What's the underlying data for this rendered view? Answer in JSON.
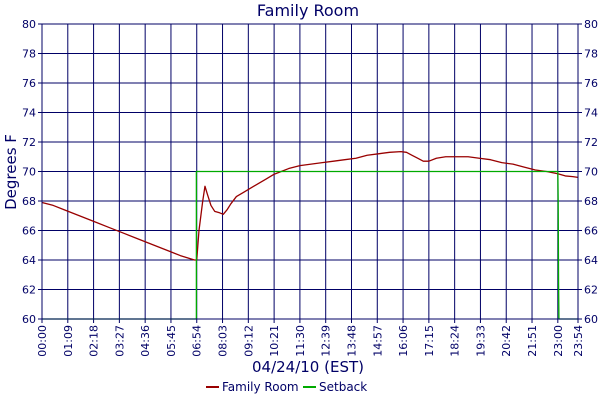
{
  "chart_data": {
    "type": "line",
    "title": "Family Room",
    "xlabel": "04/24/10 (EST)",
    "ylabel": "Degrees F",
    "xlim": [
      0,
      1434
    ],
    "ylim": [
      60,
      80
    ],
    "y_ticks": [
      60,
      62,
      64,
      66,
      68,
      70,
      72,
      74,
      76,
      78,
      80
    ],
    "x_ticks": [
      {
        "minutes": 0,
        "label": "00:00"
      },
      {
        "minutes": 69,
        "label": "01:09"
      },
      {
        "minutes": 138,
        "label": "02:18"
      },
      {
        "minutes": 207,
        "label": "03:27"
      },
      {
        "minutes": 276,
        "label": "04:36"
      },
      {
        "minutes": 345,
        "label": "05:45"
      },
      {
        "minutes": 414,
        "label": "06:54"
      },
      {
        "minutes": 483,
        "label": "08:03"
      },
      {
        "minutes": 552,
        "label": "09:12"
      },
      {
        "minutes": 621,
        "label": "10:21"
      },
      {
        "minutes": 690,
        "label": "11:30"
      },
      {
        "minutes": 759,
        "label": "12:39"
      },
      {
        "minutes": 828,
        "label": "13:48"
      },
      {
        "minutes": 897,
        "label": "14:57"
      },
      {
        "minutes": 966,
        "label": "16:06"
      },
      {
        "minutes": 1035,
        "label": "17:15"
      },
      {
        "minutes": 1104,
        "label": "18:24"
      },
      {
        "minutes": 1173,
        "label": "19:33"
      },
      {
        "minutes": 1242,
        "label": "20:42"
      },
      {
        "minutes": 1311,
        "label": "21:51"
      },
      {
        "minutes": 1380,
        "label": "23:00"
      },
      {
        "minutes": 1434,
        "label": "23:54"
      }
    ],
    "grid": true,
    "legend_position": "bottom",
    "series": [
      {
        "name": "Family Room",
        "color": "#990000",
        "points": [
          [
            0,
            67.9
          ],
          [
            30,
            67.7
          ],
          [
            60,
            67.4
          ],
          [
            100,
            67.0
          ],
          [
            140,
            66.6
          ],
          [
            180,
            66.2
          ],
          [
            220,
            65.8
          ],
          [
            260,
            65.4
          ],
          [
            300,
            65.0
          ],
          [
            340,
            64.6
          ],
          [
            370,
            64.3
          ],
          [
            395,
            64.1
          ],
          [
            408,
            64.0
          ],
          [
            414,
            64.0
          ],
          [
            420,
            66.0
          ],
          [
            430,
            68.0
          ],
          [
            436,
            69.0
          ],
          [
            442,
            68.5
          ],
          [
            452,
            67.7
          ],
          [
            462,
            67.3
          ],
          [
            475,
            67.2
          ],
          [
            485,
            67.1
          ],
          [
            495,
            67.4
          ],
          [
            505,
            67.8
          ],
          [
            520,
            68.3
          ],
          [
            540,
            68.6
          ],
          [
            560,
            68.9
          ],
          [
            580,
            69.2
          ],
          [
            600,
            69.5
          ],
          [
            620,
            69.8
          ],
          [
            640,
            70.0
          ],
          [
            660,
            70.2
          ],
          [
            690,
            70.4
          ],
          [
            720,
            70.5
          ],
          [
            750,
            70.6
          ],
          [
            780,
            70.7
          ],
          [
            810,
            70.8
          ],
          [
            840,
            70.9
          ],
          [
            870,
            71.1
          ],
          [
            900,
            71.2
          ],
          [
            930,
            71.3
          ],
          [
            960,
            71.35
          ],
          [
            975,
            71.3
          ],
          [
            990,
            71.1
          ],
          [
            1005,
            70.9
          ],
          [
            1020,
            70.7
          ],
          [
            1035,
            70.7
          ],
          [
            1055,
            70.9
          ],
          [
            1080,
            71.0
          ],
          [
            1110,
            71.0
          ],
          [
            1140,
            71.0
          ],
          [
            1170,
            70.9
          ],
          [
            1200,
            70.8
          ],
          [
            1230,
            70.6
          ],
          [
            1260,
            70.5
          ],
          [
            1290,
            70.3
          ],
          [
            1320,
            70.1
          ],
          [
            1350,
            70.0
          ],
          [
            1380,
            69.85
          ],
          [
            1400,
            69.7
          ],
          [
            1420,
            69.65
          ],
          [
            1434,
            69.6
          ]
        ]
      },
      {
        "name": "Setback",
        "color": "#00aa00",
        "points": [
          [
            0,
            60
          ],
          [
            413,
            60
          ],
          [
            413,
            70
          ],
          [
            1380,
            70
          ],
          [
            1381,
            68.0
          ],
          [
            1382,
            62.5
          ],
          [
            1383,
            60
          ],
          [
            1434,
            60
          ]
        ]
      }
    ]
  }
}
